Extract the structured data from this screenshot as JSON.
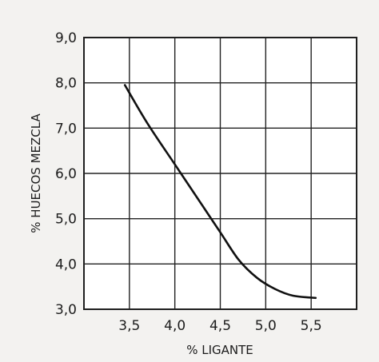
{
  "chart_data": {
    "type": "line",
    "xlabel": "% LIGANTE",
    "ylabel": "% HUECOS MEZCLA",
    "xlim": [
      3.0,
      6.0
    ],
    "ylim": [
      3.0,
      9.0
    ],
    "x_ticks": [
      "3,5",
      "4,0",
      "4,5",
      "5,0",
      "5,5"
    ],
    "x_tick_values": [
      3.5,
      4.0,
      4.5,
      5.0,
      5.5
    ],
    "y_ticks": [
      "3,0",
      "4,0",
      "5,0",
      "6,0",
      "7,0",
      "8,0",
      "9,0"
    ],
    "y_tick_values": [
      3.0,
      4.0,
      5.0,
      6.0,
      7.0,
      8.0,
      9.0
    ],
    "grid": true,
    "series": [
      {
        "x": [
          3.45,
          3.7,
          4.0,
          4.3,
          4.5,
          4.7,
          4.9,
          5.1,
          5.3,
          5.55
        ],
        "y": [
          7.95,
          7.1,
          6.2,
          5.3,
          4.7,
          4.1,
          3.7,
          3.45,
          3.3,
          3.25
        ]
      }
    ]
  }
}
